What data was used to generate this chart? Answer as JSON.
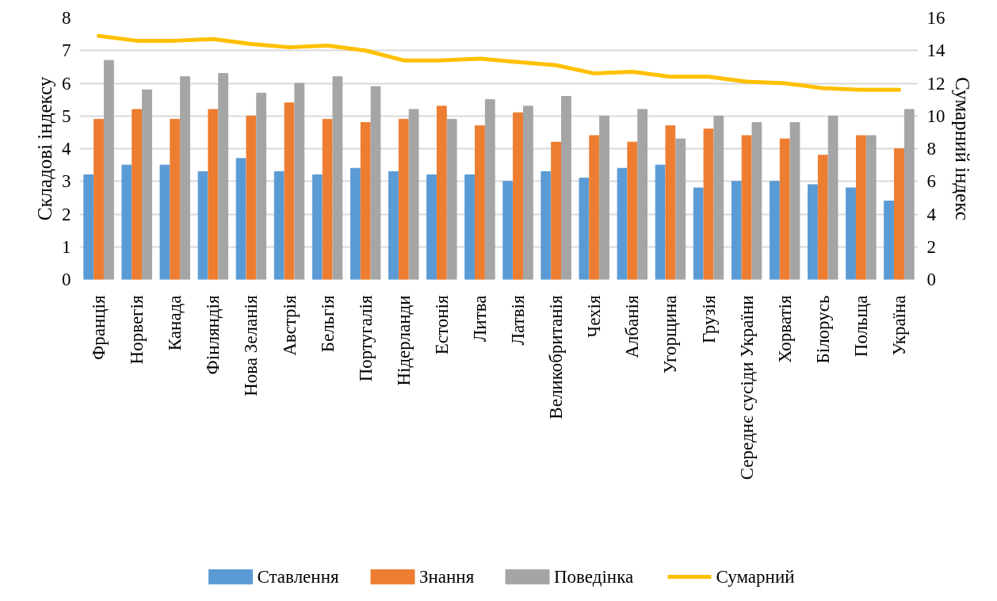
{
  "chart_data": {
    "type": "bar",
    "ylabel": "Складові індексу",
    "y2label": "Сумарний індекс",
    "categories": [
      "Франція",
      "Норвегія",
      "Канада",
      "Фінляндія",
      "Нова Зеланія",
      "Австрія",
      "Бельгія",
      "Португалія",
      "Нідерланди",
      "Естонія",
      "Литва",
      "Латвія",
      "Великобританія",
      "Чехія",
      "Албанія",
      "Угорщина",
      "Грузія",
      "Середнє сусіди України",
      "Хорватія",
      "Білорусь",
      "Польща",
      "Україна"
    ],
    "series": [
      {
        "name": "Ставлення",
        "color": "#5b9bd5",
        "values": [
          3.2,
          3.5,
          3.5,
          3.3,
          3.7,
          3.3,
          3.2,
          3.4,
          3.3,
          3.2,
          3.2,
          3.0,
          3.3,
          3.1,
          3.4,
          3.5,
          2.8,
          3.0,
          3.0,
          2.9,
          2.8,
          2.4
        ]
      },
      {
        "name": "Знання",
        "color": "#ed7d31",
        "values": [
          4.9,
          5.2,
          4.9,
          5.2,
          5.0,
          5.4,
          4.9,
          4.8,
          4.9,
          5.3,
          4.7,
          5.1,
          4.2,
          4.4,
          4.2,
          4.7,
          4.6,
          4.4,
          4.3,
          3.8,
          4.4,
          4.0
        ]
      },
      {
        "name": "Поведінка",
        "color": "#a5a5a5",
        "values": [
          6.7,
          5.8,
          6.2,
          6.3,
          5.7,
          6.0,
          6.2,
          5.9,
          5.2,
          4.9,
          5.5,
          5.3,
          5.6,
          5.0,
          5.2,
          4.3,
          5.0,
          4.8,
          4.8,
          5.0,
          4.4,
          5.2
        ]
      },
      {
        "name": "Сумарний",
        "color": "#ffc000",
        "type": "line",
        "axis": "y2",
        "values": [
          14.9,
          14.6,
          14.6,
          14.7,
          14.4,
          14.2,
          14.3,
          14.0,
          13.4,
          13.4,
          13.5,
          13.3,
          13.1,
          12.6,
          12.7,
          12.4,
          12.4,
          12.1,
          12.0,
          11.7,
          11.6,
          11.6
        ]
      }
    ],
    "ylim": [
      0,
      8
    ],
    "yticks": [
      0,
      1,
      2,
      3,
      4,
      5,
      6,
      7,
      8
    ],
    "y2lim": [
      0,
      16
    ],
    "y2ticks": [
      0,
      2,
      4,
      6,
      8,
      10,
      12,
      14,
      16
    ],
    "grid": "y",
    "legend": "bottom"
  }
}
